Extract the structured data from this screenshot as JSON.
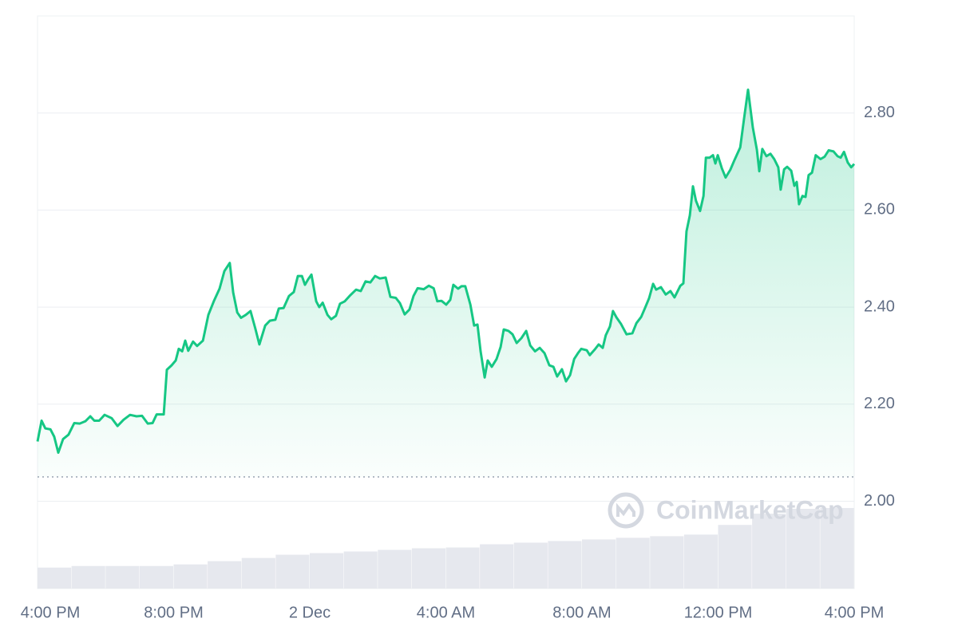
{
  "chart_data": {
    "type": "line",
    "watermark": "CoinMarketCap",
    "color": "#16c784",
    "volume_color": "#e6e8ee",
    "grid": true,
    "y_axis_side": "right",
    "reference_line": 2.05,
    "xlim": [
      0,
      24
    ],
    "xticks": [
      {
        "value": 0,
        "label": "4:00 PM"
      },
      {
        "value": 4,
        "label": "8:00 PM"
      },
      {
        "value": 8,
        "label": "2 Dec"
      },
      {
        "value": 12,
        "label": "4:00 AM"
      },
      {
        "value": 16,
        "label": "8:00 AM"
      },
      {
        "value": 20,
        "label": "12:00 PM"
      },
      {
        "value": 24,
        "label": "4:00 PM"
      }
    ],
    "ylim": [
      1.82,
      3.0
    ],
    "yticks": [
      {
        "value": 2,
        "label": "2.00"
      },
      {
        "value": 2.2,
        "label": "2.20"
      },
      {
        "value": 2.4,
        "label": "2.40"
      },
      {
        "value": 2.6,
        "label": "2.60"
      },
      {
        "value": 2.8,
        "label": "2.80"
      }
    ],
    "x": [
      0,
      0.12,
      0.23,
      0.38,
      0.49,
      0.61,
      0.75,
      0.91,
      1.08,
      1.24,
      1.41,
      1.55,
      1.67,
      1.81,
      1.97,
      2.18,
      2.35,
      2.53,
      2.72,
      2.91,
      3.07,
      3.24,
      3.38,
      3.5,
      3.71,
      3.8,
      3.94,
      4.06,
      4.15,
      4.25,
      4.34,
      4.43,
      4.57,
      4.69,
      4.86,
      5.02,
      5.18,
      5.35,
      5.49,
      5.65,
      5.75,
      5.87,
      5.98,
      6.12,
      6.26,
      6.4,
      6.52,
      6.69,
      6.83,
      6.99,
      7.09,
      7.23,
      7.39,
      7.53,
      7.65,
      7.77,
      7.86,
      7.95,
      8.05,
      8.19,
      8.28,
      8.38,
      8.52,
      8.63,
      8.77,
      8.89,
      9.03,
      9.17,
      9.36,
      9.5,
      9.64,
      9.78,
      9.92,
      10.06,
      10.23,
      10.37,
      10.53,
      10.65,
      10.79,
      10.93,
      11.05,
      11.17,
      11.35,
      11.5,
      11.64,
      11.75,
      11.87,
      12.01,
      12.13,
      12.22,
      12.36,
      12.46,
      12.57,
      12.72,
      12.83,
      12.93,
      13.02,
      13.14,
      13.23,
      13.35,
      13.49,
      13.61,
      13.7,
      13.84,
      13.96,
      14.08,
      14.22,
      14.36,
      14.48,
      14.62,
      14.76,
      14.9,
      15.04,
      15.16,
      15.27,
      15.41,
      15.53,
      15.65,
      15.77,
      15.88,
      15.98,
      16.14,
      16.23,
      16.38,
      16.49,
      16.61,
      16.7,
      16.82,
      16.91,
      17.01,
      17.15,
      17.31,
      17.48,
      17.6,
      17.74,
      17.85,
      17.97,
      18.09,
      18.18,
      18.32,
      18.46,
      18.6,
      18.72,
      18.89,
      18.98,
      19.07,
      19.17,
      19.26,
      19.35,
      19.47,
      19.57,
      19.64,
      19.75,
      19.85,
      19.92,
      19.99,
      20.11,
      20.22,
      20.36,
      20.48,
      20.65,
      20.76,
      20.88,
      21.02,
      21.14,
      21.21,
      21.3,
      21.42,
      21.54,
      21.65,
      21.77,
      21.84,
      21.94,
      22.03,
      22.15,
      22.24,
      22.31,
      22.38,
      22.48,
      22.57,
      22.66,
      22.76,
      22.87,
      23.01,
      23.13,
      23.25,
      23.39,
      23.51,
      23.6,
      23.7,
      23.81,
      23.91,
      24
    ],
    "series": [
      {
        "values": [
          2.123,
          2.166,
          2.15,
          2.148,
          2.133,
          2.1,
          2.128,
          2.137,
          2.161,
          2.16,
          2.165,
          2.175,
          2.166,
          2.166,
          2.178,
          2.171,
          2.155,
          2.168,
          2.178,
          2.175,
          2.176,
          2.16,
          2.161,
          2.179,
          2.179,
          2.271,
          2.28,
          2.29,
          2.314,
          2.309,
          2.331,
          2.31,
          2.329,
          2.32,
          2.331,
          2.384,
          2.412,
          2.438,
          2.474,
          2.491,
          2.43,
          2.389,
          2.378,
          2.384,
          2.392,
          2.356,
          2.323,
          2.362,
          2.372,
          2.374,
          2.397,
          2.398,
          2.423,
          2.431,
          2.464,
          2.464,
          2.446,
          2.457,
          2.467,
          2.412,
          2.4,
          2.409,
          2.384,
          2.375,
          2.382,
          2.407,
          2.412,
          2.423,
          2.436,
          2.433,
          2.453,
          2.451,
          2.464,
          2.459,
          2.461,
          2.421,
          2.419,
          2.408,
          2.385,
          2.395,
          2.423,
          2.439,
          2.437,
          2.444,
          2.439,
          2.412,
          2.413,
          2.405,
          2.415,
          2.446,
          2.438,
          2.443,
          2.443,
          2.405,
          2.362,
          2.364,
          2.309,
          2.255,
          2.29,
          2.277,
          2.293,
          2.318,
          2.354,
          2.351,
          2.344,
          2.326,
          2.336,
          2.351,
          2.321,
          2.309,
          2.316,
          2.305,
          2.28,
          2.277,
          2.257,
          2.272,
          2.247,
          2.26,
          2.293,
          2.305,
          2.314,
          2.311,
          2.301,
          2.313,
          2.323,
          2.316,
          2.342,
          2.36,
          2.392,
          2.379,
          2.365,
          2.344,
          2.346,
          2.367,
          2.38,
          2.398,
          2.418,
          2.448,
          2.436,
          2.441,
          2.426,
          2.433,
          2.42,
          2.444,
          2.449,
          2.556,
          2.589,
          2.649,
          2.619,
          2.598,
          2.629,
          2.708,
          2.708,
          2.713,
          2.696,
          2.713,
          2.686,
          2.667,
          2.683,
          2.703,
          2.729,
          2.787,
          2.848,
          2.77,
          2.724,
          2.68,
          2.726,
          2.711,
          2.716,
          2.705,
          2.688,
          2.642,
          2.684,
          2.689,
          2.681,
          2.65,
          2.658,
          2.612,
          2.629,
          2.627,
          2.672,
          2.677,
          2.713,
          2.705,
          2.71,
          2.723,
          2.721,
          2.711,
          2.708,
          2.72,
          2.698,
          2.688,
          2.695
        ]
      }
    ],
    "volume": {
      "x": [
        0,
        1,
        2,
        3,
        4,
        5,
        6,
        7,
        8,
        9,
        10,
        11,
        12,
        13,
        14,
        15,
        16,
        17,
        18,
        19,
        20,
        21,
        22,
        23
      ],
      "values": [
        26,
        28,
        28,
        28,
        30,
        34,
        38,
        42,
        44,
        46,
        48,
        50,
        51,
        55,
        57,
        59,
        61,
        63,
        65,
        67,
        79,
        93,
        99,
        100
      ]
    }
  }
}
